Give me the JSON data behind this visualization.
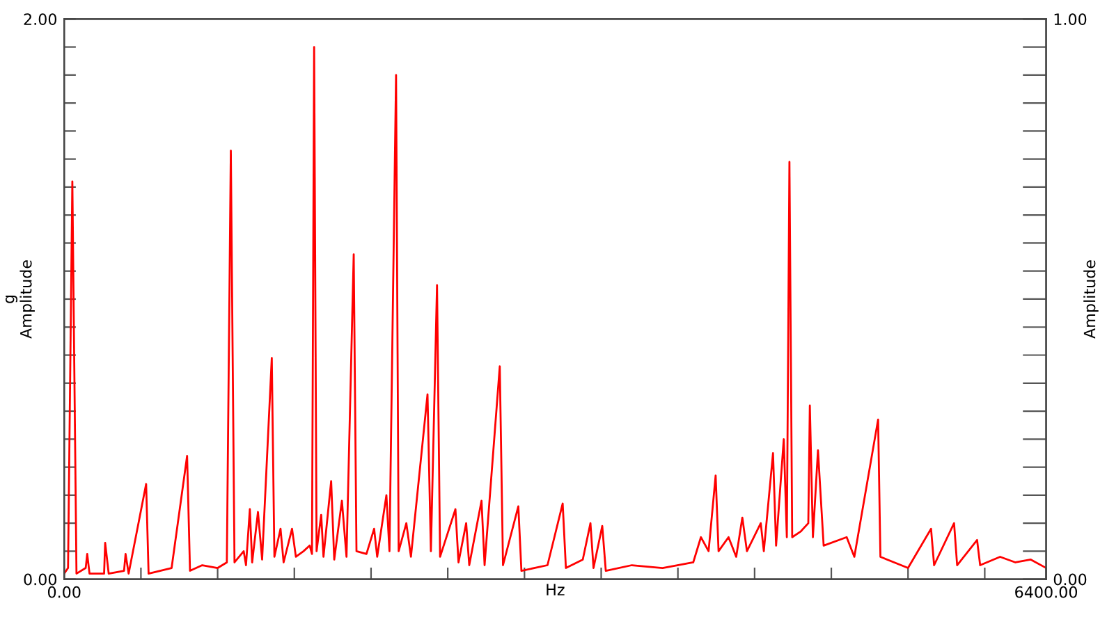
{
  "chart_data": {
    "type": "line",
    "xlabel": "Hz",
    "ylabel": "g\nAmplitude",
    "y2label": "Amplitude",
    "xlim": [
      0,
      6400
    ],
    "ylim": [
      0,
      2
    ],
    "y2lim": [
      0,
      1
    ],
    "xticks": [
      {
        "value": 0,
        "label": "0.00"
      },
      {
        "value": 500,
        "label": null
      },
      {
        "value": 1000,
        "label": null
      },
      {
        "value": 1500,
        "label": null
      },
      {
        "value": 2000,
        "label": null
      },
      {
        "value": 2500,
        "label": null
      },
      {
        "value": 3000,
        "label": null
      },
      {
        "value": 3500,
        "label": null
      },
      {
        "value": 4000,
        "label": null
      },
      {
        "value": 4500,
        "label": null
      },
      {
        "value": 5000,
        "label": null
      },
      {
        "value": 5500,
        "label": null
      },
      {
        "value": 6000,
        "label": null
      },
      {
        "value": 6400,
        "label": "6400.00"
      }
    ],
    "yticks": [
      {
        "value": 0,
        "label": "0.00"
      },
      {
        "value": 0.1,
        "label": null
      },
      {
        "value": 0.2,
        "label": null
      },
      {
        "value": 0.3,
        "label": null
      },
      {
        "value": 0.4,
        "label": null
      },
      {
        "value": 0.5,
        "label": null
      },
      {
        "value": 0.6,
        "label": null
      },
      {
        "value": 0.7,
        "label": null
      },
      {
        "value": 0.8,
        "label": null
      },
      {
        "value": 0.9,
        "label": null
      },
      {
        "value": 1.0,
        "label": null
      },
      {
        "value": 1.1,
        "label": null
      },
      {
        "value": 1.2,
        "label": null
      },
      {
        "value": 1.3,
        "label": null
      },
      {
        "value": 1.4,
        "label": null
      },
      {
        "value": 1.5,
        "label": null
      },
      {
        "value": 1.6,
        "label": null
      },
      {
        "value": 1.7,
        "label": null
      },
      {
        "value": 1.8,
        "label": null
      },
      {
        "value": 1.9,
        "label": null
      },
      {
        "value": 2,
        "label": "2.00"
      }
    ],
    "y2ticks": [
      {
        "value": 0,
        "label": "0.00"
      },
      {
        "value": 0.05,
        "label": null
      },
      {
        "value": 0.1,
        "label": null
      },
      {
        "value": 0.15,
        "label": null
      },
      {
        "value": 0.2,
        "label": null
      },
      {
        "value": 0.25,
        "label": null
      },
      {
        "value": 0.3,
        "label": null
      },
      {
        "value": 0.35,
        "label": null
      },
      {
        "value": 0.4,
        "label": null
      },
      {
        "value": 0.45,
        "label": null
      },
      {
        "value": 0.5,
        "label": null
      },
      {
        "value": 0.55,
        "label": null
      },
      {
        "value": 0.6,
        "label": null
      },
      {
        "value": 0.65,
        "label": null
      },
      {
        "value": 0.7,
        "label": null
      },
      {
        "value": 0.75,
        "label": null
      },
      {
        "value": 0.8,
        "label": null
      },
      {
        "value": 0.85,
        "label": null
      },
      {
        "value": 0.9,
        "label": null
      },
      {
        "value": 0.95,
        "label": null
      },
      {
        "value": 1,
        "label": "1.00"
      }
    ],
    "grid": false,
    "marker": "none",
    "line_style": "solid",
    "series": [
      {
        "color": "#ff0000",
        "x": [
          0,
          25,
          53,
          80,
          140,
          150,
          165,
          260,
          267,
          290,
          390,
          400,
          420,
          534,
          550,
          700,
          801,
          820,
          900,
          1000,
          1060,
          1086,
          1110,
          1170,
          1185,
          1210,
          1225,
          1263,
          1290,
          1353,
          1370,
          1410,
          1430,
          1485,
          1510,
          1560,
          1600,
          1615,
          1629,
          1645,
          1675,
          1690,
          1740,
          1760,
          1810,
          1840,
          1887,
          1905,
          1970,
          2020,
          2040,
          2100,
          2120,
          2163,
          2180,
          2230,
          2260,
          2368,
          2390,
          2430,
          2450,
          2550,
          2570,
          2620,
          2640,
          2720,
          2740,
          2839,
          2860,
          2960,
          2980,
          3150,
          3249,
          3270,
          3380,
          3430,
          3450,
          3507,
          3530,
          3700,
          3900,
          4100,
          4150,
          4200,
          4246,
          4265,
          4330,
          4380,
          4420,
          4450,
          4540,
          4560,
          4620,
          4640,
          4690,
          4710,
          4727,
          4745,
          4800,
          4850,
          4860,
          4880,
          4913,
          4950,
          5100,
          5150,
          5305,
          5320,
          5500,
          5650,
          5670,
          5800,
          5820,
          5950,
          5970,
          6100,
          6200,
          6300,
          6400
        ],
        "values": [
          0.02,
          0.04,
          1.42,
          0.02,
          0.04,
          0.09,
          0.02,
          0.02,
          0.13,
          0.02,
          0.03,
          0.09,
          0.02,
          0.34,
          0.02,
          0.04,
          0.44,
          0.03,
          0.05,
          0.04,
          0.06,
          1.53,
          0.06,
          0.1,
          0.05,
          0.25,
          0.06,
          0.24,
          0.07,
          0.79,
          0.08,
          0.18,
          0.06,
          0.18,
          0.08,
          0.1,
          0.12,
          0.09,
          1.9,
          0.1,
          0.23,
          0.08,
          0.35,
          0.07,
          0.28,
          0.08,
          1.16,
          0.1,
          0.09,
          0.18,
          0.08,
          0.3,
          0.1,
          1.8,
          0.1,
          0.2,
          0.08,
          0.66,
          0.1,
          1.05,
          0.08,
          0.25,
          0.06,
          0.2,
          0.05,
          0.28,
          0.05,
          0.76,
          0.05,
          0.26,
          0.03,
          0.05,
          0.27,
          0.04,
          0.07,
          0.2,
          0.04,
          0.19,
          0.03,
          0.05,
          0.04,
          0.06,
          0.15,
          0.1,
          0.37,
          0.1,
          0.15,
          0.08,
          0.22,
          0.1,
          0.2,
          0.1,
          0.45,
          0.12,
          0.5,
          0.15,
          1.49,
          0.15,
          0.17,
          0.2,
          0.62,
          0.15,
          0.46,
          0.12,
          0.15,
          0.08,
          0.57,
          0.08,
          0.04,
          0.18,
          0.05,
          0.2,
          0.05,
          0.14,
          0.05,
          0.08,
          0.06,
          0.07,
          0.04
        ]
      }
    ]
  }
}
